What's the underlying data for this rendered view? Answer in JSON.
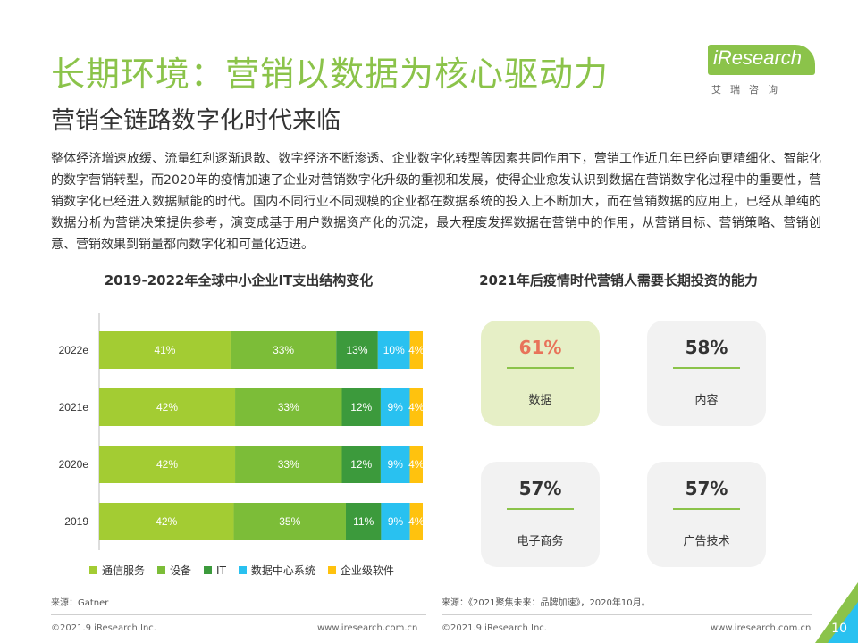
{
  "header": {
    "title": "长期环境：营销以数据为核心驱动力",
    "subtitle": "营销全链路数字化时代来临"
  },
  "logo": {
    "brand": "iResearch",
    "cn": "艾瑞咨询"
  },
  "body_text": "整体经济增速放缓、流量红利逐渐退散、数字经济不断渗透、企业数字化转型等因素共同作用下，营销工作近几年已经向更精细化、智能化的数字营销转型，而2020年的疫情加速了企业对营销数字化升级的重视和发展，使得企业愈发认识到数据在营销数字化过程中的重要性，营销数字化已经进入数据赋能的时代。国内不同行业不同规模的企业都在数据系统的投入上不断加大，而在营销数据的应用上，已经从单纯的数据分析为营销决策提供参考，演变成基于用户数据资产化的沉淀，最大程度发挥数据在营销中的作用，从营销目标、营销策略、营销创意、营销效果到销量都向数字化和可量化迈进。",
  "left_chart": {
    "title": "2019-2022年全球中小企业IT支出结构变化",
    "source": "来源：Gatner"
  },
  "right_chart": {
    "title": "2021年后疫情时代营销人需要长期投资的能力",
    "source": "来源：《2021聚焦未来：品牌加速》，2020年10月。",
    "cards": [
      {
        "pct": "61%",
        "label": "数据",
        "highlight": true
      },
      {
        "pct": "58%",
        "label": "内容",
        "highlight": false
      },
      {
        "pct": "57%",
        "label": "电子商务",
        "highlight": false
      },
      {
        "pct": "57%",
        "label": "广告技术",
        "highlight": false
      }
    ]
  },
  "chart_data": {
    "type": "bar",
    "orientation": "horizontal",
    "stacked": true,
    "percent": true,
    "categories": [
      "2022e",
      "2021e",
      "2020e",
      "2019"
    ],
    "series": [
      {
        "name": "通信服务",
        "values": [
          41,
          42,
          42,
          42
        ],
        "color": "#a3cc33"
      },
      {
        "name": "设备",
        "values": [
          33,
          33,
          33,
          35
        ],
        "color": "#7cbd38"
      },
      {
        "name": "IT",
        "values": [
          13,
          12,
          12,
          11
        ],
        "color": "#3c9a3c"
      },
      {
        "name": "数据中心系统",
        "values": [
          10,
          9,
          9,
          9
        ],
        "color": "#29c1f0"
      },
      {
        "name": "企业级软件",
        "values": [
          4,
          4,
          4,
          4
        ],
        "color": "#ffc20e"
      }
    ],
    "xlim": [
      0,
      100
    ],
    "legend_position": "bottom",
    "grid": false
  },
  "footer": {
    "copyright_left": "©2021.9 iResearch Inc.",
    "url_left": "www.iresearch.com.cn",
    "copyright_right": "©2021.9 iResearch Inc.",
    "url_right": "www.iresearch.com.cn",
    "page_number": "10"
  },
  "colors": {
    "accent": "#8bc34a",
    "highlight_card": "#e6efc6",
    "highlight_pct": "#e8735a",
    "card": "#f2f2f2"
  }
}
